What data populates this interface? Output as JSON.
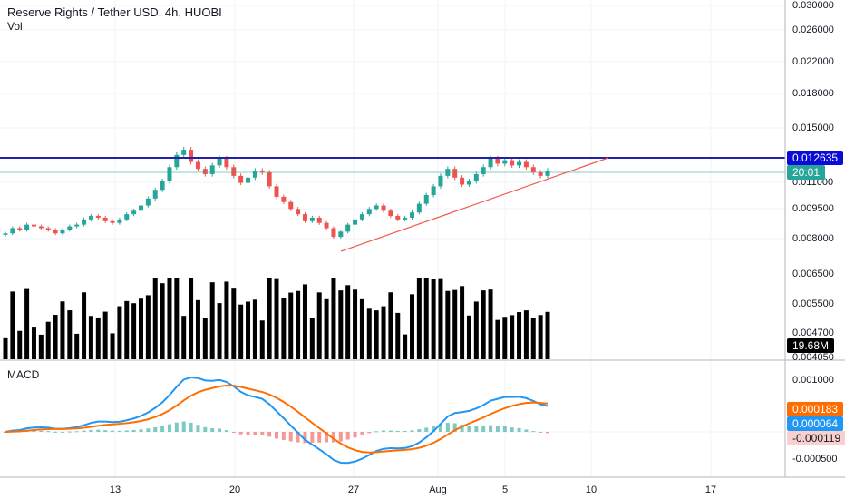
{
  "header": {
    "title": "Reserve Rights / Tether USD, 4h, HUOBI",
    "volume_label": "Vol",
    "macd_label": "MACD"
  },
  "price_axis": {
    "ticks": [
      "0.030000",
      "0.026000",
      "0.022000",
      "0.018000",
      "0.015000",
      "0.011000",
      "0.009500",
      "0.008000",
      "0.006500",
      "0.005500",
      "0.004700",
      "0.004050"
    ],
    "horizontal_line_value": "0.012635",
    "countdown": "20:01",
    "volume_value": "19.68M"
  },
  "macd_axis": {
    "ticks": [
      "0.001000",
      "-0.000500"
    ],
    "signal_value": "0.000183",
    "macd_value": "0.000064",
    "histogram_value": "-0.000119"
  },
  "time_axis": {
    "labels": [
      "13",
      "20",
      "27",
      "Aug",
      "5",
      "10",
      "17"
    ]
  },
  "colors": {
    "up": "#26a69a",
    "down": "#ef5350",
    "resistance": "#1e22aa",
    "resistance_tag": "#0b0bd6",
    "last_price": "#26a69a",
    "trendline": "#f15b4e",
    "macd_line": "#2196f3",
    "signal_line": "#ff6d00",
    "hist_neg_tag": "#f8d0cf"
  },
  "chart_data": {
    "type": "candlestick",
    "symbol": "Reserve Rights / Tether USD",
    "interval": "4h",
    "exchange": "HUOBI",
    "close_series": [
      0.0083,
      0.0086,
      0.0085,
      0.0088,
      0.0087,
      0.0086,
      0.0085,
      0.0083,
      0.0085,
      0.0087,
      0.0088,
      0.0091,
      0.0093,
      0.0092,
      0.009,
      0.0089,
      0.0091,
      0.0094,
      0.0096,
      0.0099,
      0.0103,
      0.0108,
      0.0113,
      0.0121,
      0.0128,
      0.0131,
      0.0124,
      0.012,
      0.0117,
      0.0122,
      0.0126,
      0.0121,
      0.0116,
      0.0112,
      0.0115,
      0.0119,
      0.0118,
      0.011,
      0.0104,
      0.0101,
      0.0097,
      0.0094,
      0.009,
      0.0092,
      0.0089,
      0.0086,
      0.0081,
      0.0084,
      0.0088,
      0.0091,
      0.0094,
      0.0097,
      0.0099,
      0.0096,
      0.0093,
      0.0091,
      0.0092,
      0.0095,
      0.01,
      0.0105,
      0.011,
      0.0116,
      0.012,
      0.0115,
      0.0111,
      0.0113,
      0.0117,
      0.0121,
      0.0126,
      0.0123,
      0.0125,
      0.0122,
      0.0124,
      0.0121,
      0.0118,
      0.0116,
      0.0119
    ],
    "resistance_level": 0.012635,
    "trendline_from": 0.0078,
    "trendline_to": 0.0126
  }
}
